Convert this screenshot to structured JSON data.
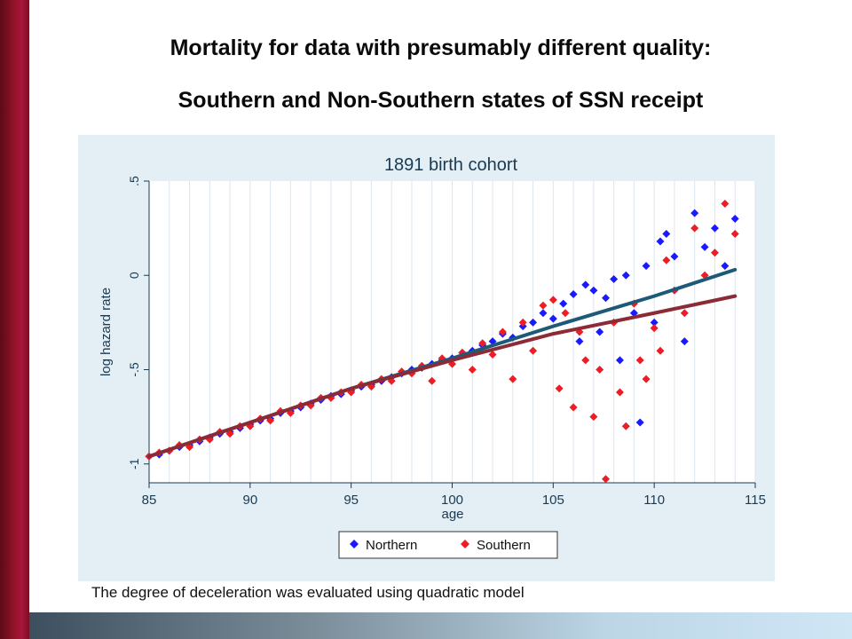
{
  "slide": {
    "title_line_1": "Mortality for data with presumably different quality:",
    "title_line_2": "Southern and Non-Southern states of SSN receipt",
    "footnote": "The degree of deceleration was evaluated using quadratic model"
  },
  "colors": {
    "accent_bar": "#a8163a",
    "northern": "#1a1aff",
    "southern": "#ee1c24",
    "northern_fit": "#1d5a78",
    "southern_fit": "#8c2a35"
  },
  "chart_data": {
    "type": "scatter",
    "title": "1891 birth cohort",
    "xlabel": "age",
    "ylabel": "log hazard rate",
    "xlim": [
      85,
      115
    ],
    "ylim": [
      -1.1,
      0.5
    ],
    "xticks": [
      "85",
      "90",
      "95",
      "100",
      "105",
      "110",
      "115"
    ],
    "yticks": [
      "-1",
      "-.5",
      "0",
      ".5"
    ],
    "grid": true,
    "legend_position": "bottom",
    "legend": [
      "Northern",
      "Southern"
    ],
    "series": [
      {
        "name": "Northern",
        "marker": "diamond",
        "x": [
          85.0,
          85.5,
          86.0,
          86.5,
          87.0,
          87.5,
          88.0,
          88.5,
          89.0,
          89.5,
          90.0,
          90.5,
          91.0,
          91.5,
          92.0,
          92.5,
          93.0,
          93.5,
          94.0,
          94.5,
          95.0,
          95.5,
          96.0,
          96.5,
          97.0,
          97.5,
          98.0,
          98.5,
          99.0,
          99.5,
          100.0,
          100.5,
          101.0,
          101.5,
          102.0,
          102.5,
          103.0,
          103.5,
          104.0,
          104.5,
          105.0,
          105.5,
          106.0,
          106.3,
          106.6,
          107.0,
          107.3,
          107.6,
          108.0,
          108.3,
          108.6,
          109.0,
          109.3,
          109.6,
          110.0,
          110.3,
          110.6,
          111.0,
          111.5,
          112.0,
          112.5,
          113.0,
          113.5,
          114.0
        ],
        "y": [
          -0.96,
          -0.95,
          -0.93,
          -0.91,
          -0.9,
          -0.88,
          -0.86,
          -0.84,
          -0.83,
          -0.81,
          -0.79,
          -0.77,
          -0.76,
          -0.73,
          -0.72,
          -0.7,
          -0.68,
          -0.66,
          -0.64,
          -0.63,
          -0.61,
          -0.59,
          -0.58,
          -0.56,
          -0.54,
          -0.52,
          -0.5,
          -0.49,
          -0.47,
          -0.45,
          -0.44,
          -0.41,
          -0.4,
          -0.37,
          -0.35,
          -0.31,
          -0.33,
          -0.27,
          -0.25,
          -0.2,
          -0.23,
          -0.15,
          -0.1,
          -0.35,
          -0.05,
          -0.08,
          -0.3,
          -0.12,
          -0.02,
          -0.45,
          0.0,
          -0.2,
          -0.78,
          0.05,
          -0.25,
          0.18,
          0.22,
          0.1,
          -0.35,
          0.33,
          0.15,
          0.25,
          0.05,
          0.3
        ]
      },
      {
        "name": "Southern",
        "marker": "diamond",
        "x": [
          85.0,
          85.5,
          86.0,
          86.5,
          87.0,
          87.5,
          88.0,
          88.5,
          89.0,
          89.5,
          90.0,
          90.5,
          91.0,
          91.5,
          92.0,
          92.5,
          93.0,
          93.5,
          94.0,
          94.5,
          95.0,
          95.5,
          96.0,
          96.5,
          97.0,
          97.5,
          98.0,
          98.5,
          99.0,
          99.5,
          100.0,
          100.5,
          101.0,
          101.5,
          102.0,
          102.5,
          103.0,
          103.5,
          104.0,
          104.5,
          105.0,
          105.3,
          105.6,
          106.0,
          106.3,
          106.6,
          107.0,
          107.3,
          107.6,
          108.0,
          108.3,
          108.6,
          109.0,
          109.3,
          109.6,
          110.0,
          110.3,
          110.6,
          111.0,
          111.5,
          112.0,
          112.5,
          113.0,
          113.5,
          114.0
        ],
        "y": [
          -0.96,
          -0.94,
          -0.93,
          -0.9,
          -0.91,
          -0.87,
          -0.87,
          -0.83,
          -0.84,
          -0.8,
          -0.8,
          -0.76,
          -0.77,
          -0.72,
          -0.73,
          -0.69,
          -0.69,
          -0.65,
          -0.65,
          -0.62,
          -0.62,
          -0.58,
          -0.59,
          -0.55,
          -0.56,
          -0.51,
          -0.52,
          -0.48,
          -0.56,
          -0.44,
          -0.47,
          -0.41,
          -0.5,
          -0.36,
          -0.42,
          -0.3,
          -0.55,
          -0.25,
          -0.4,
          -0.16,
          -0.13,
          -0.6,
          -0.2,
          -0.7,
          -0.3,
          -0.45,
          -0.75,
          -0.5,
          -1.08,
          -0.25,
          -0.62,
          -0.8,
          -0.15,
          -0.45,
          -0.55,
          -0.28,
          -0.4,
          0.08,
          -0.08,
          -0.2,
          0.25,
          0.0,
          0.12,
          0.38,
          0.22
        ]
      },
      {
        "name": "Northern fit",
        "type": "line",
        "x": [
          85,
          90,
          95,
          100,
          105,
          110,
          114
        ],
        "y": [
          -0.96,
          -0.78,
          -0.6,
          -0.44,
          -0.27,
          -0.11,
          0.03
        ]
      },
      {
        "name": "Southern fit",
        "type": "line",
        "x": [
          85,
          90,
          95,
          100,
          105,
          110,
          114
        ],
        "y": [
          -0.96,
          -0.78,
          -0.6,
          -0.45,
          -0.31,
          -0.2,
          -0.11
        ]
      }
    ]
  }
}
